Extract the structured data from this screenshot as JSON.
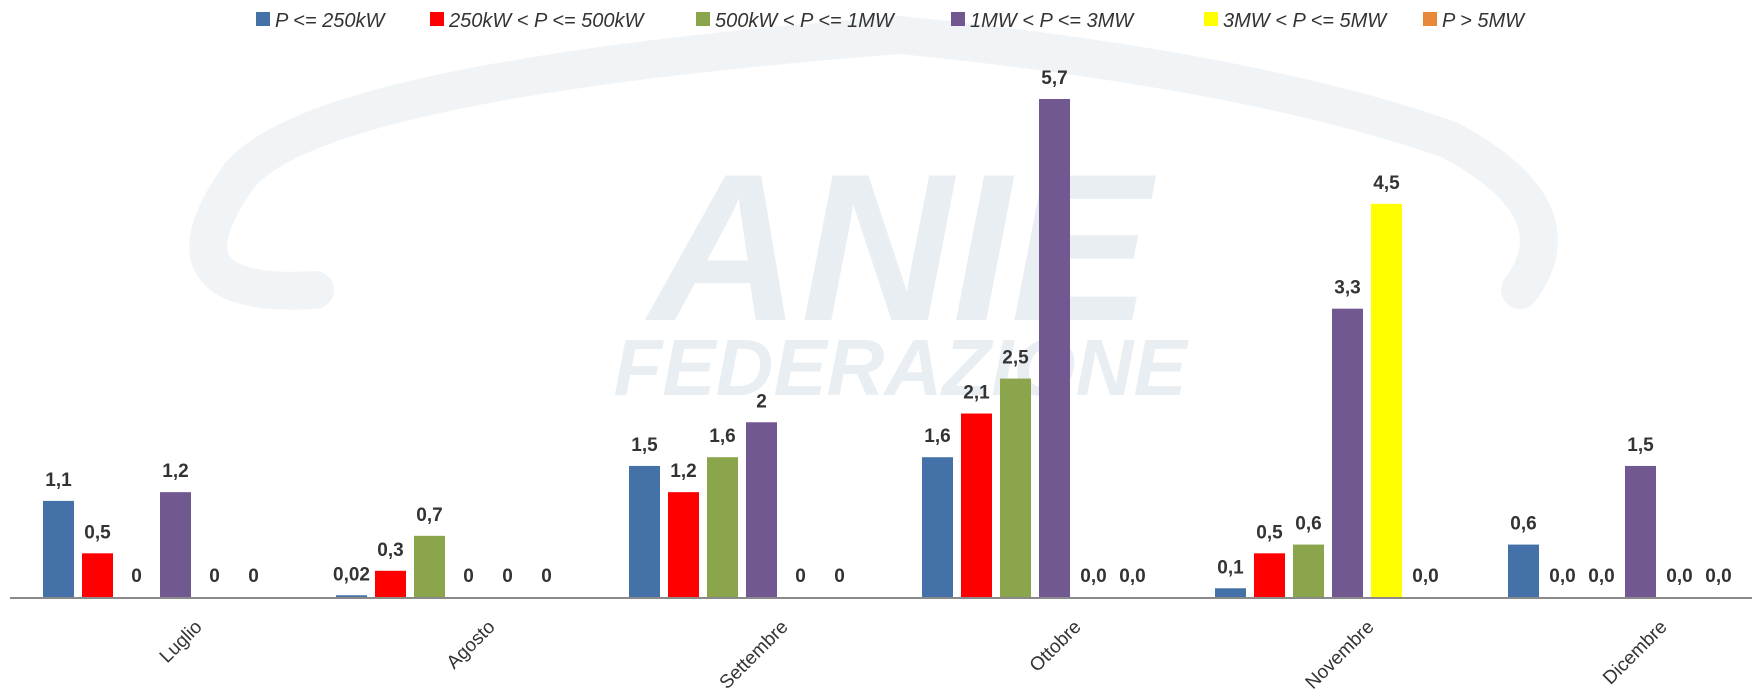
{
  "chart_data": {
    "type": "bar",
    "categories": [
      "Luglio",
      "Agosto",
      "Settembre",
      "Ottobre",
      "Novembre",
      "Dicembre"
    ],
    "series": [
      {
        "name": "P <= 250kW",
        "color": "#4472a8",
        "values": [
          1.1,
          0.02,
          1.5,
          1.6,
          0.1,
          0.6
        ],
        "labels": [
          "1,1",
          "0,02",
          "1,5",
          "1,6",
          "0,1",
          "0,6"
        ]
      },
      {
        "name": "250kW < P <= 500kW",
        "color": "#ff0000",
        "values": [
          0.5,
          0.3,
          1.2,
          2.1,
          0.5,
          0.0
        ],
        "labels": [
          "0,5",
          "0,3",
          "1,2",
          "2,1",
          "0,5",
          "0,0"
        ]
      },
      {
        "name": "500kW < P <= 1MW",
        "color": "#8aa54c",
        "values": [
          0,
          0.7,
          1.6,
          2.5,
          0.6,
          0.0
        ],
        "labels": [
          "0",
          "0,7",
          "1,6",
          "2,5",
          "0,6",
          "0,0"
        ]
      },
      {
        "name": "1MW < P <= 3MW",
        "color": "#725891",
        "values": [
          1.2,
          0,
          2,
          5.7,
          3.3,
          1.5
        ],
        "labels": [
          "1,2",
          "0",
          "2",
          "5,7",
          "3,3",
          "1,5"
        ]
      },
      {
        "name": "3MW < P <= 5MW",
        "color": "#ffff00",
        "values": [
          0,
          0,
          0,
          0.0,
          4.5,
          0.0
        ],
        "labels": [
          "0",
          "0",
          "0",
          "0,0",
          "4,5",
          "0,0"
        ]
      },
      {
        "name": "P > 5MW",
        "color": "#e8893a",
        "values": [
          0,
          0,
          0,
          0.0,
          0.0,
          0.0
        ],
        "labels": [
          "0",
          "0",
          "0",
          "0,0",
          "0,0",
          "0,0"
        ]
      }
    ],
    "ylim": [
      0,
      6
    ],
    "grid": false,
    "legend": "top",
    "watermark": [
      "ANIE",
      "FEDERAZIONE"
    ]
  }
}
